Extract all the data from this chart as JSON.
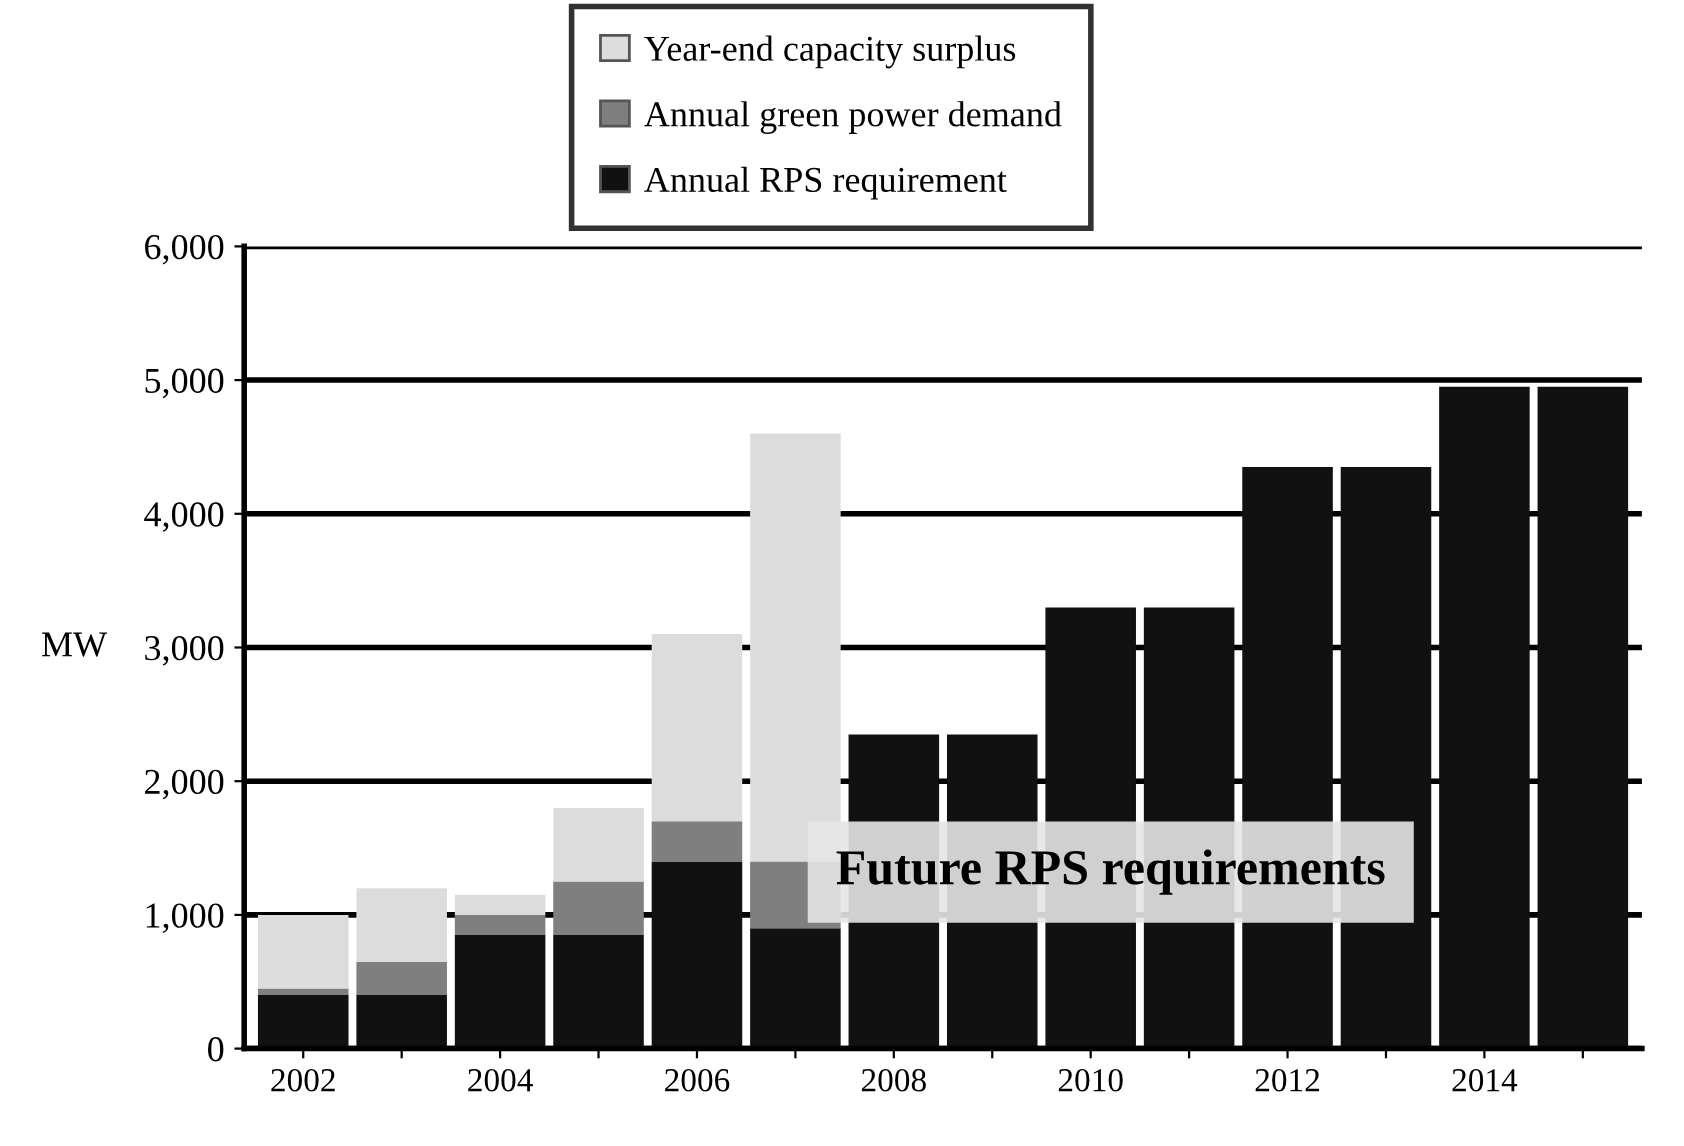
{
  "chart_data": {
    "type": "bar",
    "stacked": true,
    "ylabel": "MW",
    "categories": [
      "2002",
      null,
      "2004",
      null,
      "2006",
      null,
      "2008",
      null,
      "2010",
      null,
      "2012",
      null,
      "2014",
      null
    ],
    "series": [
      {
        "name": "Annual RPS requirement",
        "color": "#111111",
        "values": [
          400,
          400,
          850,
          850,
          1400,
          900,
          2350,
          2350,
          3300,
          3300,
          4350,
          4350,
          4950,
          4950
        ]
      },
      {
        "name": "Annual green power demand",
        "color": "#7f7f7f",
        "values": [
          50,
          250,
          150,
          400,
          300,
          500,
          null,
          null,
          null,
          null,
          null,
          null,
          null,
          null
        ]
      },
      {
        "name": "Year-end capacity surplus",
        "color": "#dcdcdc",
        "values": [
          550,
          550,
          150,
          550,
          1400,
          3200,
          null,
          null,
          null,
          null,
          null,
          null,
          null,
          null
        ]
      }
    ],
    "ylim": [
      0,
      6000
    ],
    "yticks": [
      {
        "value": 0,
        "label": "0"
      },
      {
        "value": 1000,
        "label": "1,000"
      },
      {
        "value": 2000,
        "label": "2,000"
      },
      {
        "value": 3000,
        "label": "3,000"
      },
      {
        "value": 4000,
        "label": "4,000"
      },
      {
        "value": 5000,
        "label": "5,000"
      },
      {
        "value": 6000,
        "label": "6,000"
      }
    ],
    "grid": "y",
    "legend": "top",
    "annotations": [
      "Future RPS requirements"
    ]
  }
}
